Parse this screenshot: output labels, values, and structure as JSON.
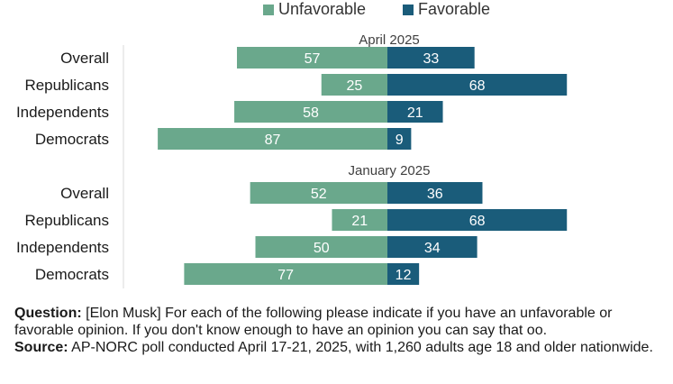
{
  "legend": {
    "unfavorable": "Unfavorable",
    "favorable": "Favorable"
  },
  "colors": {
    "unfavorable": "#6aa88c",
    "favorable": "#1a5c7a"
  },
  "notes": {
    "question_label": "Question:",
    "question_text": "[Elon Musk] For each of the following please indicate if you have an unfavorable or favorable opinion. If you don't know enough to have an opinion you can say that oo.",
    "source_label": "Source:",
    "source_text": "AP-NORC poll conducted April 17-21, 2025, with 1,260 adults age 18 and older nationwide."
  },
  "chart_data": {
    "type": "bar",
    "orientation": "horizontal-diverging",
    "series_names": [
      "Unfavorable",
      "Favorable"
    ],
    "xlim": [
      -100,
      100
    ],
    "grid": false,
    "legend_position": "top",
    "groups": [
      {
        "title": "April 2025",
        "categories": [
          "Overall",
          "Republicans",
          "Independents",
          "Democrats"
        ],
        "unfavorable": [
          57,
          25,
          58,
          87
        ],
        "favorable": [
          33,
          68,
          21,
          9
        ]
      },
      {
        "title": "January 2025",
        "categories": [
          "Overall",
          "Republicans",
          "Independents",
          "Democrats"
        ],
        "unfavorable": [
          52,
          21,
          50,
          77
        ],
        "favorable": [
          36,
          68,
          34,
          12
        ]
      }
    ]
  }
}
